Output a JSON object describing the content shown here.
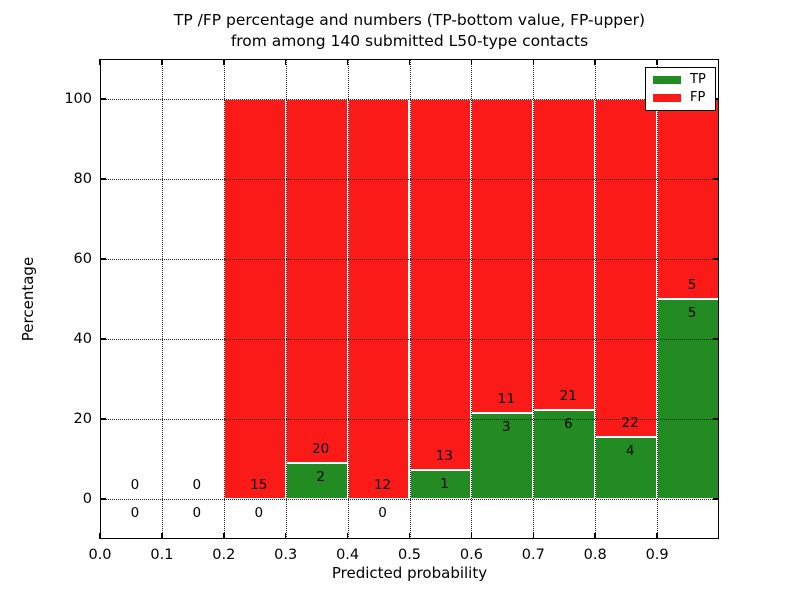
{
  "title": {
    "line1": "TP /FP percentage and numbers (TP-bottom value, FP-upper)",
    "line2": "from among 140 submitted L50-type contacts"
  },
  "chart_data": {
    "type": "bar",
    "stacked": true,
    "title": "TP /FP percentage and numbers (TP-bottom value, FP-upper)\nfrom among 140 submitted L50-type contacts",
    "xlabel": "Predicted probability",
    "ylabel": "Percentage",
    "xlim": [
      0.0,
      1.0
    ],
    "ylim": [
      -10,
      110
    ],
    "xticks": [
      "0.0",
      "0.1",
      "0.2",
      "0.3",
      "0.4",
      "0.5",
      "0.6",
      "0.7",
      "0.8",
      "0.9"
    ],
    "yticks": [
      "0",
      "20",
      "40",
      "60",
      "80",
      "100"
    ],
    "grid": "dotted, drawn above bars",
    "total_contacts": 140,
    "colors": {
      "tp": "#228b22",
      "fp": "#fa1a17"
    },
    "legend": {
      "position": "upper right",
      "entries": [
        {
          "id": "tp",
          "label": "TP"
        },
        {
          "id": "fp",
          "label": "FP"
        }
      ]
    },
    "bins": [
      {
        "range": [
          0.0,
          0.1
        ],
        "tp": 0,
        "fp": 0
      },
      {
        "range": [
          0.1,
          0.2
        ],
        "tp": 0,
        "fp": 0
      },
      {
        "range": [
          0.2,
          0.3
        ],
        "tp": 0,
        "fp": 15
      },
      {
        "range": [
          0.3,
          0.4
        ],
        "tp": 2,
        "fp": 20
      },
      {
        "range": [
          0.4,
          0.5
        ],
        "tp": 0,
        "fp": 12
      },
      {
        "range": [
          0.5,
          0.6
        ],
        "tp": 1,
        "fp": 13
      },
      {
        "range": [
          0.6,
          0.7
        ],
        "tp": 3,
        "fp": 11
      },
      {
        "range": [
          0.7,
          0.8
        ],
        "tp": 6,
        "fp": 21
      },
      {
        "range": [
          0.8,
          0.9
        ],
        "tp": 4,
        "fp": 22
      },
      {
        "range": [
          0.9,
          1.0
        ],
        "tp": 5,
        "fp": 5
      }
    ]
  }
}
